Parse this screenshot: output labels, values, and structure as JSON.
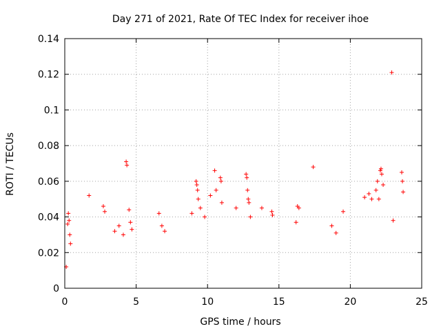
{
  "chart_data": {
    "type": "scatter",
    "title": "Day 271 of 2021, Rate Of TEC Index for receiver ihoe",
    "xlabel": "GPS time / hours",
    "ylabel": "ROTI / TECUs",
    "xlim": [
      0,
      25
    ],
    "ylim": [
      0,
      0.14
    ],
    "xticks": [
      0,
      5,
      10,
      15,
      20,
      25
    ],
    "xtick_labels": [
      "0",
      "5",
      "10",
      "15",
      "20",
      "25"
    ],
    "yticks": [
      0,
      0.02,
      0.04,
      0.06,
      0.08,
      0.1,
      0.12,
      0.14
    ],
    "ytick_labels": [
      "0",
      "0.02",
      "0.04",
      "0.06",
      "0.08",
      "0.1",
      "0.12",
      "0.14"
    ],
    "grid": true,
    "marker": "+",
    "color": "#ff0000",
    "series": [
      {
        "name": "ROTI",
        "points": [
          [
            0.1,
            0.012
          ],
          [
            0.2,
            0.036
          ],
          [
            0.25,
            0.042
          ],
          [
            0.3,
            0.038
          ],
          [
            0.35,
            0.03
          ],
          [
            0.4,
            0.025
          ],
          [
            1.7,
            0.052
          ],
          [
            2.7,
            0.046
          ],
          [
            2.8,
            0.043
          ],
          [
            3.5,
            0.032
          ],
          [
            3.8,
            0.035
          ],
          [
            4.1,
            0.03
          ],
          [
            4.3,
            0.071
          ],
          [
            4.35,
            0.069
          ],
          [
            4.5,
            0.044
          ],
          [
            4.6,
            0.037
          ],
          [
            4.7,
            0.033
          ],
          [
            6.6,
            0.042
          ],
          [
            6.8,
            0.035
          ],
          [
            7.0,
            0.032
          ],
          [
            8.9,
            0.042
          ],
          [
            9.2,
            0.06
          ],
          [
            9.25,
            0.058
          ],
          [
            9.3,
            0.055
          ],
          [
            9.35,
            0.05
          ],
          [
            9.5,
            0.045
          ],
          [
            9.8,
            0.04
          ],
          [
            10.2,
            0.052
          ],
          [
            10.5,
            0.066
          ],
          [
            10.6,
            0.055
          ],
          [
            10.9,
            0.062
          ],
          [
            10.95,
            0.06
          ],
          [
            11.0,
            0.048
          ],
          [
            12.0,
            0.045
          ],
          [
            12.7,
            0.064
          ],
          [
            12.75,
            0.062
          ],
          [
            12.8,
            0.055
          ],
          [
            12.85,
            0.05
          ],
          [
            12.9,
            0.048
          ],
          [
            13.0,
            0.04
          ],
          [
            13.8,
            0.045
          ],
          [
            14.5,
            0.043
          ],
          [
            14.55,
            0.041
          ],
          [
            16.3,
            0.046
          ],
          [
            16.4,
            0.045
          ],
          [
            16.2,
            0.037
          ],
          [
            17.4,
            0.068
          ],
          [
            18.7,
            0.035
          ],
          [
            19.0,
            0.031
          ],
          [
            19.5,
            0.043
          ],
          [
            21.0,
            0.051
          ],
          [
            21.3,
            0.053
          ],
          [
            21.5,
            0.05
          ],
          [
            21.8,
            0.055
          ],
          [
            21.9,
            0.06
          ],
          [
            22.1,
            0.066
          ],
          [
            22.15,
            0.067
          ],
          [
            22.2,
            0.064
          ],
          [
            22.3,
            0.058
          ],
          [
            22.0,
            0.05
          ],
          [
            22.9,
            0.121
          ],
          [
            23.0,
            0.038
          ],
          [
            23.6,
            0.065
          ],
          [
            23.65,
            0.06
          ],
          [
            23.7,
            0.054
          ]
        ]
      }
    ]
  }
}
